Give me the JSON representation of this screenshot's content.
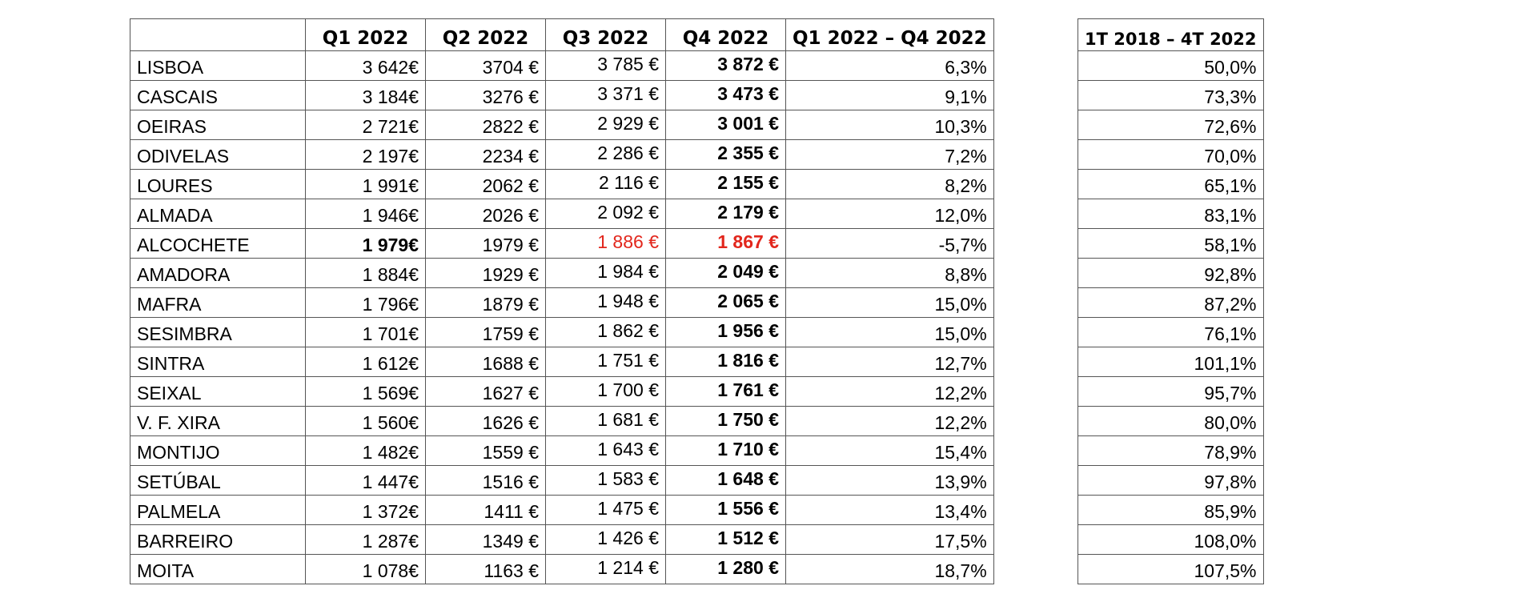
{
  "main_table": {
    "headers": [
      "",
      "Q1 2022",
      "Q2 2022",
      "Q3 2022",
      "Q4 2022",
      "Q1 2022 – Q4 2022"
    ],
    "rows": [
      {
        "city": "LISBOA",
        "q1": "3 642€",
        "q2": "3704 €",
        "q3": "3 785 €",
        "q4": "3 872 €",
        "change": "6,3%"
      },
      {
        "city": "CASCAIS",
        "q1": "3 184€",
        "q2": "3276 €",
        "q3": "3 371 €",
        "q4": "3 473 €",
        "change": "9,1%"
      },
      {
        "city": "OEIRAS",
        "q1": "2 721€",
        "q2": "2822 €",
        "q3": "2 929 €",
        "q4": "3 001 €",
        "change": "10,3%"
      },
      {
        "city": "ODIVELAS",
        "q1": "2 197€",
        "q2": "2234 €",
        "q3": "2 286 €",
        "q4": "2 355 €",
        "change": "7,2%"
      },
      {
        "city": "LOURES",
        "q1": "1 991€",
        "q2": "2062 €",
        "q3": "2 116 €",
        "q4": "2 155 €",
        "change": "8,2%"
      },
      {
        "city": "ALMADA",
        "q1": "1 946€",
        "q2": "2026 €",
        "q3": "2 092 €",
        "q4": "2 179 €",
        "change": "12,0%"
      },
      {
        "city": "ALCOCHETE",
        "q1": "1 979€",
        "q2": "1979 €",
        "q3": "1 886 €",
        "q4": "1 867 €",
        "change": "-5,7%"
      },
      {
        "city": "AMADORA",
        "q1": "1 884€",
        "q2": "1929 €",
        "q3": "1 984 €",
        "q4": "2 049 €",
        "change": "8,8%"
      },
      {
        "city": "MAFRA",
        "q1": "1 796€",
        "q2": "1879 €",
        "q3": "1 948 €",
        "q4": "2 065 €",
        "change": "15,0%"
      },
      {
        "city": "SESIMBRA",
        "q1": "1 701€",
        "q2": "1759 €",
        "q3": "1 862 €",
        "q4": "1 956 €",
        "change": "15,0%"
      },
      {
        "city": "SINTRA",
        "q1": "1 612€",
        "q2": "1688 €",
        "q3": "1 751 €",
        "q4": "1 816 €",
        "change": "12,7%"
      },
      {
        "city": "SEIXAL",
        "q1": "1 569€",
        "q2": "1627 €",
        "q3": "1 700 €",
        "q4": "1 761 €",
        "change": "12,2%"
      },
      {
        "city": "V. F. XIRA",
        "q1": "1 560€",
        "q2": "1626 €",
        "q3": "1 681 €",
        "q4": "1 750 €",
        "change": "12,2%"
      },
      {
        "city": "MONTIJO",
        "q1": "1 482€",
        "q2": "1559 €",
        "q3": "1 643 €",
        "q4": "1 710 €",
        "change": "15,4%"
      },
      {
        "city": "SETÚBAL",
        "q1": "1 447€",
        "q2": "1516 €",
        "q3": "1 583 €",
        "q4": "1 648 €",
        "change": "13,9%"
      },
      {
        "city": "PALMELA",
        "q1": "1 372€",
        "q2": "1411 €",
        "q3": "1 475 €",
        "q4": "1 556 €",
        "change": "13,4%"
      },
      {
        "city": "BARREIRO",
        "q1": "1 287€",
        "q2": "1349 €",
        "q3": "1 426 €",
        "q4": "1 512 €",
        "change": "17,5%"
      },
      {
        "city": "MOITA",
        "q1": "1 078€",
        "q2": "1163 €",
        "q3": "1 214 €",
        "q4": "1 280 €",
        "change": "18,7%"
      }
    ],
    "highlight": {
      "bold_q1_city": "ALCOCHETE",
      "red_q3_q4_city": "ALCOCHETE",
      "red_color": "#e2261c"
    }
  },
  "right_table": {
    "header": "1T 2018 – 4T 2022",
    "values": [
      "50,0%",
      "73,3%",
      "72,6%",
      "70,0%",
      "65,1%",
      "83,1%",
      "58,1%",
      "92,8%",
      "87,2%",
      "76,1%",
      "101,1%",
      "95,7%",
      "80,0%",
      "78,9%",
      "97,8%",
      "85,9%",
      "108,0%",
      "107,5%"
    ]
  }
}
